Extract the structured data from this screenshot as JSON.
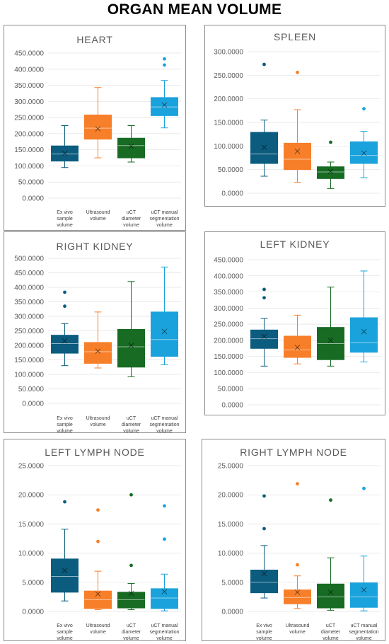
{
  "title": "ORGAN MEAN VOLUME",
  "categories": [
    [
      "Ex vivo",
      "sample",
      "volume"
    ],
    [
      "Ultrasound",
      "volume"
    ],
    [
      "uCT",
      "diameter",
      "volume"
    ],
    [
      "uCT manual",
      "segmentation",
      "volume"
    ]
  ],
  "colors": [
    "#0b5c7e",
    "#f77f2a",
    "#176b23",
    "#1aa2dc"
  ],
  "chart_data": [
    {
      "type": "box",
      "title": "HEART",
      "yticks": [
        "450.0000",
        "400.0000",
        "350.0000",
        "300.0000",
        "250.0000",
        "200.0000",
        "150.0000",
        "100.0000",
        "50.0000",
        "0.0000"
      ],
      "ylim": [
        0,
        450
      ],
      "boxes": [
        {
          "min": 95,
          "q1": 115,
          "median": 137,
          "q3": 162,
          "max": 225,
          "mean": 139,
          "outliers": []
        },
        {
          "min": 125,
          "q1": 183,
          "median": 217,
          "q3": 258,
          "max": 343,
          "mean": 215,
          "outliers": []
        },
        {
          "min": 112,
          "q1": 125,
          "median": 163,
          "q3": 186,
          "max": 225,
          "mean": 161,
          "outliers": []
        },
        {
          "min": 218,
          "q1": 256,
          "median": 283,
          "q3": 312,
          "max": 365,
          "mean": 289,
          "outliers": [
            413,
            432
          ]
        }
      ]
    },
    {
      "type": "box",
      "title": "SPLEEN",
      "yticks": [
        "300.0000",
        "250.0000",
        "200.0000",
        "150.0000",
        "100.0000",
        "50.0000",
        "0.0000"
      ],
      "ylim": [
        0,
        300
      ],
      "boxes": [
        {
          "min": 36,
          "q1": 63,
          "median": 83,
          "q3": 129,
          "max": 155,
          "mean": 97,
          "outliers": [
            273
          ]
        },
        {
          "min": 23,
          "q1": 50,
          "median": 72,
          "q3": 106,
          "max": 177,
          "mean": 89,
          "outliers": [
            256
          ]
        },
        {
          "min": 10,
          "q1": 31,
          "median": 45,
          "q3": 56,
          "max": 66,
          "mean": 46,
          "outliers": [
            108
          ]
        },
        {
          "min": 33,
          "q1": 63,
          "median": 80,
          "q3": 109,
          "max": 131,
          "mean": 85,
          "outliers": [
            179
          ]
        }
      ]
    },
    {
      "type": "box",
      "title": "RIGHT KIDNEY",
      "yticks": [
        "500.0000",
        "450.0000",
        "400.0000",
        "350.0000",
        "300.0000",
        "250.0000",
        "200.0000",
        "150.0000",
        "100.0000",
        "50.0000",
        "0.0000"
      ],
      "ylim": [
        0,
        500
      ],
      "boxes": [
        {
          "min": 130,
          "q1": 173,
          "median": 206,
          "q3": 235,
          "max": 275,
          "mean": 215,
          "outliers": [
            335,
            383
          ]
        },
        {
          "min": 122,
          "q1": 138,
          "median": 178,
          "q3": 210,
          "max": 315,
          "mean": 180,
          "outliers": []
        },
        {
          "min": 92,
          "q1": 125,
          "median": 195,
          "q3": 255,
          "max": 420,
          "mean": 200,
          "outliers": []
        },
        {
          "min": 133,
          "q1": 162,
          "median": 220,
          "q3": 315,
          "max": 470,
          "mean": 248,
          "outliers": []
        }
      ]
    },
    {
      "type": "box",
      "title": "LEFT KIDNEY",
      "yticks": [
        "450.0000",
        "400.0000",
        "350.0000",
        "300.0000",
        "250.0000",
        "200.0000",
        "150.0000",
        "100.0000",
        "50.0000",
        "0.0000"
      ],
      "ylim": [
        0,
        450
      ],
      "boxes": [
        {
          "min": 120,
          "q1": 175,
          "median": 205,
          "q3": 232,
          "max": 268,
          "mean": 212,
          "outliers": [
            332,
            358
          ]
        },
        {
          "min": 127,
          "q1": 147,
          "median": 170,
          "q3": 213,
          "max": 278,
          "mean": 178,
          "outliers": []
        },
        {
          "min": 120,
          "q1": 140,
          "median": 190,
          "q3": 240,
          "max": 365,
          "mean": 200,
          "outliers": []
        },
        {
          "min": 133,
          "q1": 163,
          "median": 193,
          "q3": 270,
          "max": 415,
          "mean": 227,
          "outliers": []
        }
      ]
    },
    {
      "type": "box",
      "title": "LEFT LYMPH NODE",
      "yticks": [
        "25.0000",
        "20.0000",
        "15.0000",
        "10.0000",
        "5.0000",
        "0.0000"
      ],
      "ylim": [
        0,
        25
      ],
      "boxes": [
        {
          "min": 1.8,
          "q1": 3.3,
          "median": 6.0,
          "q3": 9.0,
          "max": 14.1,
          "mean": 7.0,
          "outliers": [
            18.8
          ]
        },
        {
          "min": 0.3,
          "q1": 0.5,
          "median": 2.0,
          "q3": 3.5,
          "max": 6.9,
          "mean": 3.0,
          "outliers": [
            12.0,
            17.4
          ]
        },
        {
          "min": 0.3,
          "q1": 0.6,
          "median": 2.0,
          "q3": 3.3,
          "max": 4.8,
          "mean": 3.1,
          "outliers": [
            7.9,
            20.0
          ]
        },
        {
          "min": 0.1,
          "q1": 0.5,
          "median": 2.3,
          "q3": 3.9,
          "max": 6.4,
          "mean": 3.4,
          "outliers": [
            12.4,
            18.1
          ]
        }
      ]
    },
    {
      "type": "box",
      "title": "RIGHT LYMPH NODE",
      "yticks": [
        "25.0000",
        "20.0000",
        "15.0000",
        "10.0000",
        "5.0000",
        "0.0000"
      ],
      "ylim": [
        0,
        25
      ],
      "boxes": [
        {
          "min": 2.3,
          "q1": 3.2,
          "median": 5.0,
          "q3": 7.1,
          "max": 11.3,
          "mean": 6.5,
          "outliers": [
            14.2,
            19.8
          ]
        },
        {
          "min": 0.5,
          "q1": 1.3,
          "median": 2.4,
          "q3": 3.7,
          "max": 6.1,
          "mean": 3.3,
          "outliers": [
            8.0,
            21.9
          ]
        },
        {
          "min": 0.2,
          "q1": 0.6,
          "median": 2.5,
          "q3": 4.7,
          "max": 9.2,
          "mean": 3.3,
          "outliers": [
            19.1
          ]
        },
        {
          "min": 0.1,
          "q1": 0.7,
          "median": 2.5,
          "q3": 4.9,
          "max": 9.5,
          "mean": 3.7,
          "outliers": [
            21.1
          ]
        }
      ]
    }
  ]
}
